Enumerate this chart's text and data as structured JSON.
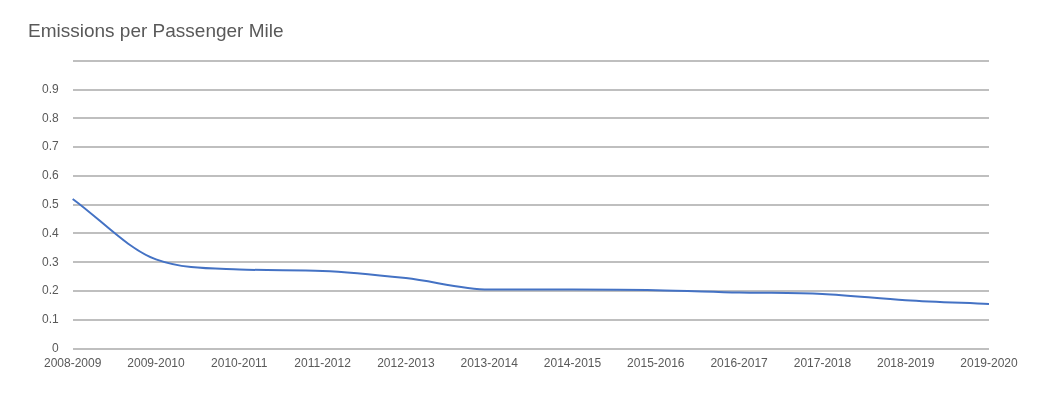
{
  "chart_data": {
    "type": "line",
    "title": "Emissions per Passenger Mile",
    "categories": [
      "2008-2009",
      "2009-2010",
      "2010-2011",
      "2011-2012",
      "2012-2013",
      "2013-2014",
      "2014-2015",
      "2015-2016",
      "2016-2017",
      "2017-2018",
      "2018-2019",
      "2019-2020"
    ],
    "series": [
      {
        "color": "#4472c4",
        "values": [
          0.52,
          0.31,
          0.275,
          0.27,
          0.245,
          0.205,
          0.205,
          0.203,
          0.195,
          0.19,
          0.168,
          0.155
        ]
      }
    ],
    "ylim": [
      0,
      1
    ],
    "yticks": [
      0,
      0.1,
      0.2,
      0.3,
      0.4,
      0.5,
      0.6,
      0.7,
      0.8,
      0.9,
      {
        "value": 1,
        "label": null
      }
    ],
    "grid": "y",
    "legend": false,
    "marker": "none",
    "line_style": "solid"
  }
}
